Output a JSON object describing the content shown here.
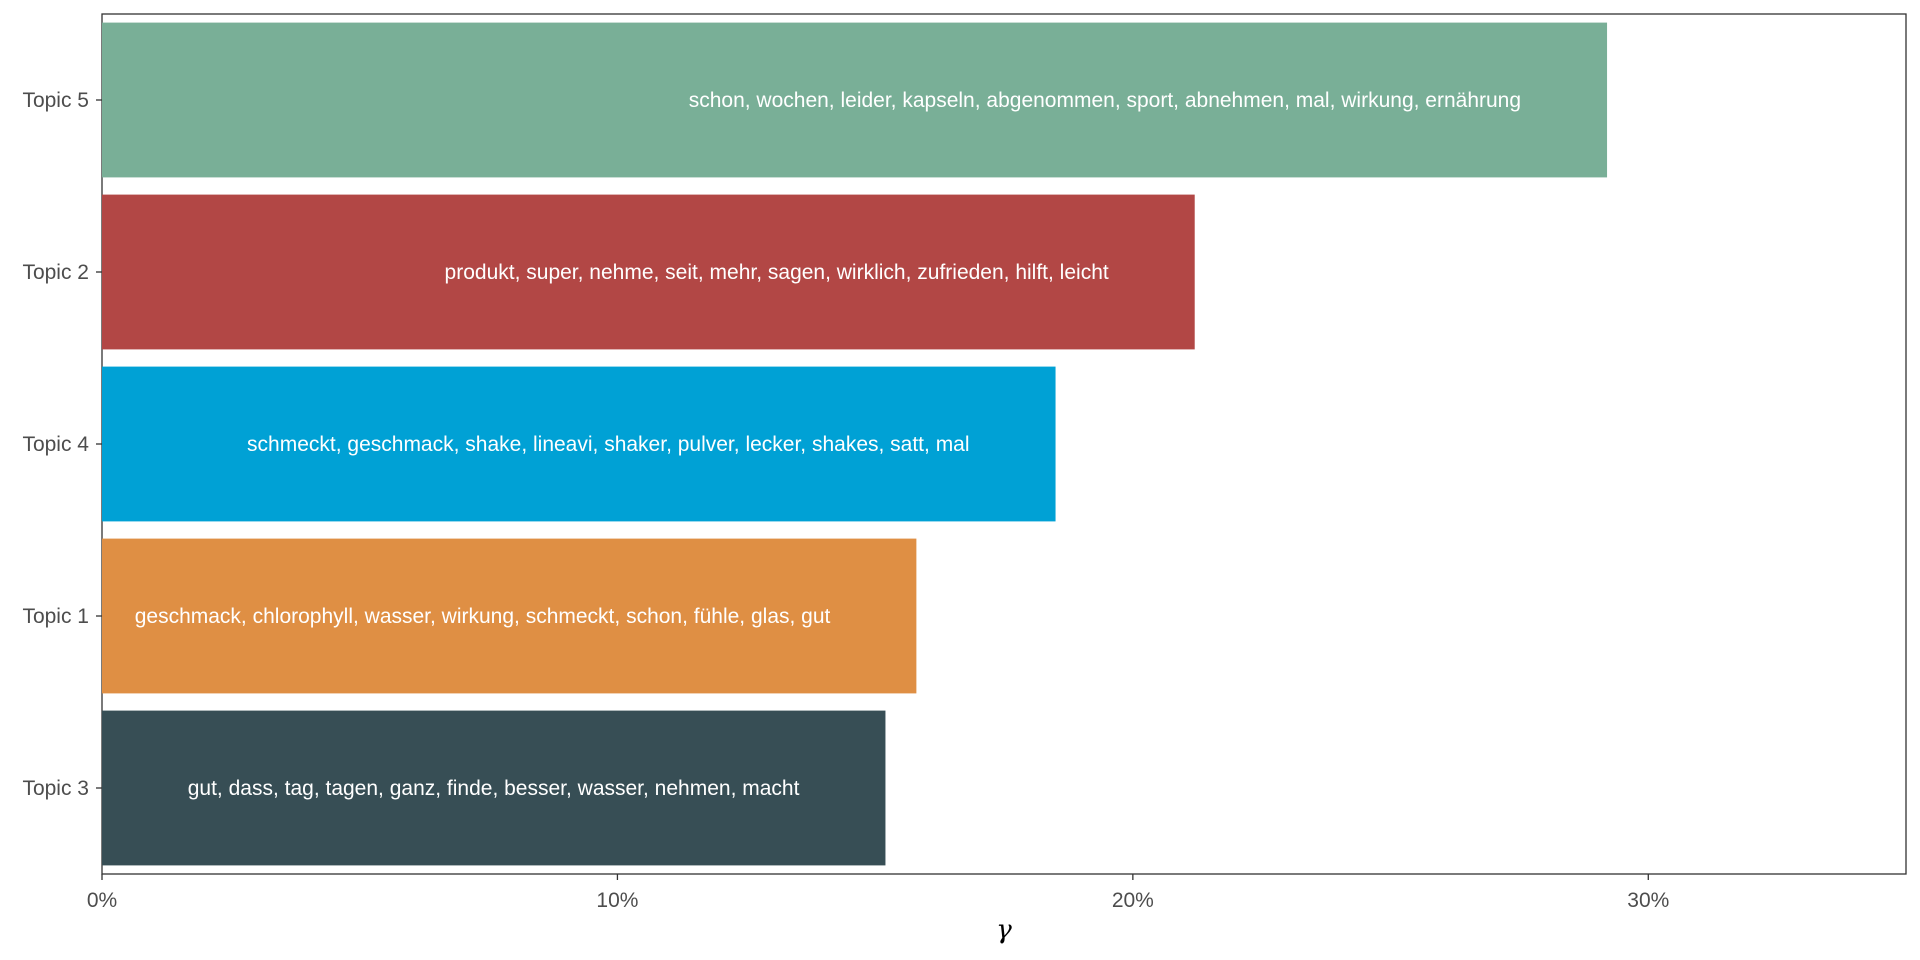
{
  "chart_data": {
    "type": "bar",
    "orientation": "horizontal",
    "title": "",
    "xlabel": "γ",
    "ylabel": "",
    "xlim": [
      0,
      35
    ],
    "x_ticks": [
      0,
      10,
      20,
      30
    ],
    "x_tick_labels": [
      "0%",
      "10%",
      "20%",
      "30%"
    ],
    "grid": false,
    "legend": "none",
    "categories": [
      "Topic 5",
      "Topic 2",
      "Topic 4",
      "Topic 1",
      "Topic 3"
    ],
    "values": [
      29.2,
      21.2,
      18.5,
      15.8,
      15.2
    ],
    "terms": [
      "schon, wochen, leider, kapseln, abgenommen, sport, abnehmen, mal, wirkung, ernährung",
      "produkt, super, nehme, seit, mehr, sagen, wirklich, zufrieden, hilft, leicht",
      "schmeckt, geschmack, shake, lineavi, shaker, pulver, lecker, shakes, satt, mal",
      "geschmack, chlorophyll, wasser, wirkung, schmeckt, schon, fühle, glas, gut",
      "gut, dass, tag, tagen, ganz, finde, besser, wasser, nehmen, macht"
    ],
    "colors": [
      "#79AF97",
      "#B24745",
      "#00A1D5",
      "#DF8F44",
      "#374E55"
    ]
  }
}
